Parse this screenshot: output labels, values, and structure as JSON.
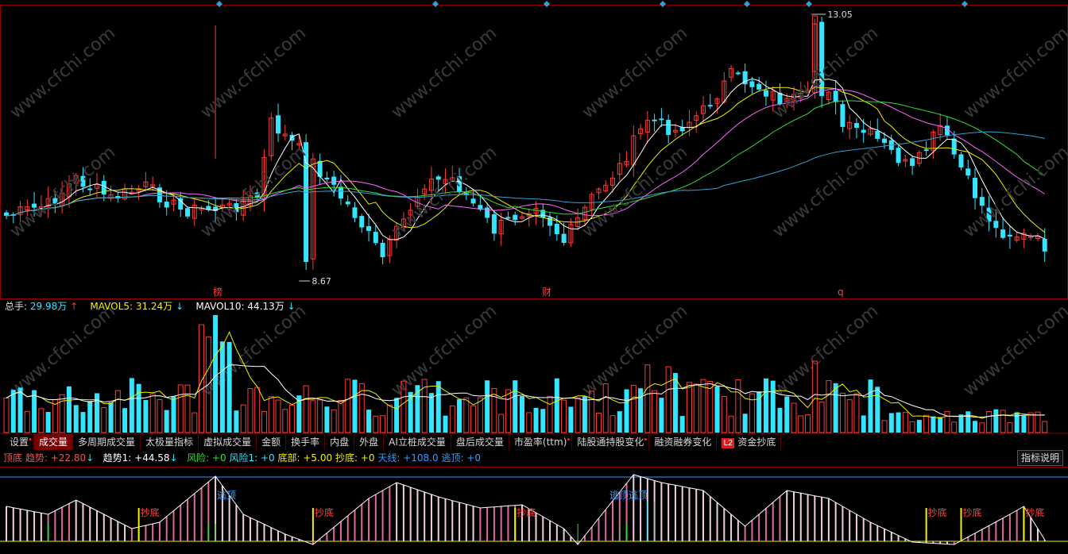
{
  "price_panel": {
    "high_label": "13.05",
    "low_label": "8.67",
    "event_markers": [
      "榜",
      "财",
      "q"
    ]
  },
  "volume_panel": {
    "legend": [
      {
        "label": "总手:",
        "value": "29.98万",
        "arrow": "↑",
        "color": "#33e5ff",
        "arrow_color": "#ff3030",
        "label_color": "#dddddd"
      },
      {
        "label": "MAVOL5:",
        "value": "31.24万",
        "arrow": "↓",
        "color": "#f0f000",
        "arrow_color": "#33e5ff",
        "label_color": "#f0f000"
      },
      {
        "label": "MAVOL10:",
        "value": "44.13万",
        "arrow": "↓",
        "color": "#ffffff",
        "arrow_color": "#33e5ff",
        "label_color": "#ffffff"
      }
    ]
  },
  "tabs": [
    {
      "label": "设置",
      "dot": true
    },
    {
      "label": "成交量",
      "active": true
    },
    {
      "label": "多周期成交量"
    },
    {
      "label": "太极量指标"
    },
    {
      "label": "虚拟成交量"
    },
    {
      "label": "金额"
    },
    {
      "label": "换手率"
    },
    {
      "label": "内盘"
    },
    {
      "label": "外盘"
    },
    {
      "label": "AI立桩成交量"
    },
    {
      "label": "盘后成交量"
    },
    {
      "label": "市盈率(ttm)",
      "dot": true
    },
    {
      "label": "陆股通持股变化",
      "dot": true
    },
    {
      "label": "融资融券变化"
    },
    {
      "label": "资金抄底",
      "badge": "L2"
    }
  ],
  "indicator_panel": {
    "legend": [
      {
        "text": "顶底",
        "color": "#e05a5a"
      },
      {
        "text": "趋势: +22.80",
        "color": "#e05a5a"
      },
      {
        "text": "↓",
        "color": "#33e5ff"
      },
      {
        "text": "趋势1: +44.58",
        "color": "#ffffff"
      },
      {
        "text": "↓",
        "color": "#33e5ff"
      },
      {
        "text": "风险: +0",
        "color": "#33dd33"
      },
      {
        "text": "风险1: +0",
        "color": "#33e5ff"
      },
      {
        "text": "底部: +5.00",
        "color": "#f0f000"
      },
      {
        "text": "抄底: +0",
        "color": "#f0f000"
      },
      {
        "text": "天线: +108.0",
        "color": "#3399ff"
      },
      {
        "text": "逃顶: +0",
        "color": "#33a0ff"
      }
    ],
    "help_button": "指标说明",
    "signal_buy": "抄底",
    "signal_sell": "逃顶",
    "signal_sell_double": "逃顶逃顶"
  },
  "watermark": "www.cfchi.com",
  "colors": {
    "up": "#ff3a3a",
    "down": "#33e5ff",
    "ma5": "#ffffff",
    "ma10": "#f0f000",
    "ma20": "#ff66ff",
    "ma30": "#33dd33",
    "ma60": "#33a0d8",
    "panel_border": "#8a0000"
  }
}
